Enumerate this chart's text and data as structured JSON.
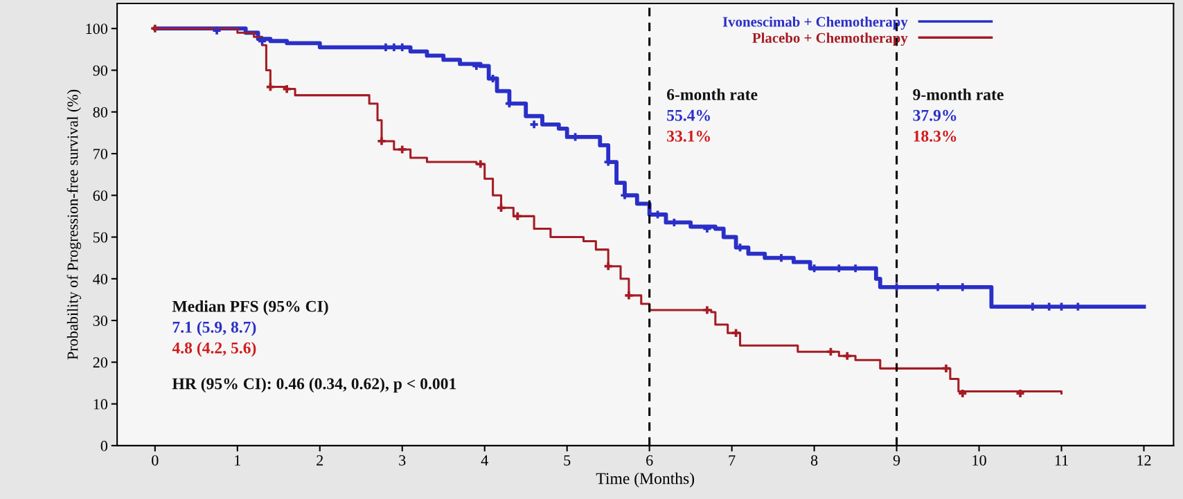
{
  "chart_data": {
    "type": "step",
    "xlabel": "Time (Months)",
    "ylabel": "Probability of Progression-free survival (%)",
    "xlim": [
      -0.46,
      12.36
    ],
    "ylim": [
      0,
      106
    ],
    "xticks": [
      0,
      1,
      2,
      3,
      4,
      5,
      6,
      7,
      8,
      9,
      10,
      11,
      12
    ],
    "yticks": [
      0,
      10,
      20,
      30,
      40,
      50,
      60,
      70,
      80,
      90,
      100
    ],
    "grid": false,
    "legend": "top right",
    "series": [
      {
        "name": "Ivonescimab + Chemotherapy",
        "color": "#2a2fc8",
        "x": [
          0,
          0.9,
          1.1,
          1.25,
          1.4,
          1.6,
          2.0,
          2.7,
          3.1,
          3.3,
          3.5,
          3.7,
          3.95,
          4.05,
          4.15,
          4.3,
          4.5,
          4.7,
          4.9,
          5.0,
          5.3,
          5.4,
          5.5,
          5.6,
          5.7,
          5.85,
          6.0,
          6.2,
          6.5,
          6.8,
          6.9,
          7.05,
          7.2,
          7.4,
          7.75,
          7.95,
          8.75,
          8.8,
          10.15,
          12
        ],
        "values": [
          100,
          100,
          99,
          97.5,
          97,
          96.5,
          95.5,
          95.5,
          94.5,
          93.5,
          92.5,
          91.5,
          91,
          88,
          85,
          82,
          79,
          77,
          76,
          74,
          74,
          72,
          68,
          63,
          60,
          58,
          55.4,
          53.5,
          52.5,
          52,
          50,
          47.5,
          46,
          45,
          44,
          42.5,
          40,
          38,
          33.3,
          33.3
        ]
      },
      {
        "name": "Placebo + Chemotherapy",
        "color": "#a51c24",
        "x": [
          0,
          1.0,
          1.2,
          1.3,
          1.35,
          1.4,
          1.6,
          1.7,
          2.5,
          2.6,
          2.7,
          2.75,
          2.9,
          3.1,
          3.3,
          3.9,
          4.0,
          4.1,
          4.2,
          4.35,
          4.6,
          4.8,
          5.2,
          5.35,
          5.5,
          5.65,
          5.75,
          5.9,
          6.0,
          6.75,
          6.8,
          6.95,
          7.1,
          7.8,
          8.3,
          8.5,
          8.8,
          9.65,
          9.75,
          11
        ],
        "values": [
          100,
          99,
          98,
          96,
          90,
          86,
          85.5,
          84,
          84,
          82,
          78,
          73,
          71,
          69,
          68,
          67.5,
          64,
          60,
          57,
          55,
          52,
          50,
          49,
          47,
          43,
          40,
          36,
          34,
          32.5,
          32,
          29,
          27,
          24,
          22.5,
          21.5,
          20.5,
          18.5,
          16,
          13,
          12.5
        ]
      },
      {
        "type": "scatter",
        "marker": "cross",
        "color": "#2a2fc8",
        "x": [
          0.75,
          1.3,
          2.8,
          2.9,
          3.0,
          3.9,
          4.1,
          4.3,
          4.6,
          5.1,
          5.5,
          5.7,
          6.1,
          6.3,
          6.7,
          7.1,
          7.6,
          8.0,
          8.3,
          8.5,
          9.0,
          9.5,
          9.8,
          10.65,
          10.85,
          11.0,
          11.2
        ],
        "values": [
          99.5,
          97,
          95.5,
          95.5,
          95.5,
          91,
          88,
          82,
          77,
          74,
          68,
          60,
          55.4,
          53.5,
          52,
          47.5,
          45,
          42.5,
          42.5,
          42.5,
          38,
          38,
          38,
          33.3,
          33.3,
          33.3,
          33.3
        ]
      },
      {
        "type": "scatter",
        "marker": "cross",
        "color": "#a51c24",
        "x": [
          0.0,
          1.4,
          1.6,
          2.75,
          3.0,
          3.95,
          4.2,
          4.4,
          5.5,
          5.75,
          6.7,
          7.05,
          8.2,
          8.4,
          9.6,
          9.8,
          10.5
        ],
        "values": [
          100,
          86,
          85.5,
          73,
          71,
          67.5,
          57,
          55,
          43,
          36,
          32.5,
          27,
          22.5,
          21.5,
          18.5,
          12.5,
          12.5
        ]
      }
    ],
    "ref_lines": [
      {
        "axis": "x",
        "value": 6,
        "color": "#000000",
        "line_style": "dashed"
      },
      {
        "axis": "x",
        "value": 9,
        "color": "#000000",
        "line_style": "dashed"
      }
    ],
    "annotations": [
      "6-month rate",
      "55.4%",
      "33.1%",
      "9-month rate",
      "37.9%",
      "18.3%",
      "Median PFS (95% CI)",
      "7.1 (5.9, 8.7)",
      "4.8 (4.2, 5.6)",
      "HR (95% CI): 0.46 (0.34, 0.62), p < 0.001"
    ]
  }
}
